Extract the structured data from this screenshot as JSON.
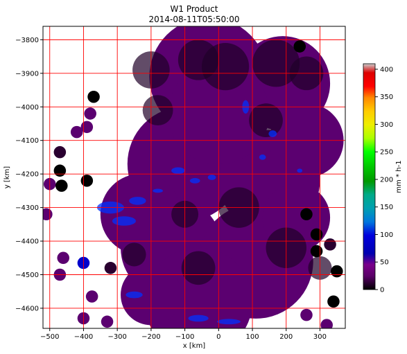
{
  "chart_data": {
    "type": "heatmap",
    "title": "W1 Product",
    "subtitle": "2014-08-11T05:50:00",
    "xlabel": "x [km]",
    "ylabel": "y [km]",
    "xlim": [
      -520,
      375
    ],
    "ylim": [
      -4660,
      -3760
    ],
    "x_ticks": [
      -500,
      -400,
      -300,
      -200,
      -100,
      0,
      100,
      200,
      300
    ],
    "y_ticks": [
      -3800,
      -3900,
      -4000,
      -4100,
      -4200,
      -4300,
      -4400,
      -4500,
      -4600
    ],
    "grid": true,
    "grid_color": "#ff0000",
    "colorbar": {
      "label": "mm * h-1",
      "min": 0,
      "max": 410,
      "ticks": [
        0,
        50,
        100,
        150,
        200,
        250,
        300,
        350,
        400
      ],
      "colormap": "nipy_spectral"
    },
    "dominant_colors": {
      "background_rain": "#5b0070",
      "no_rain": "#000000",
      "heavy_rain": "#0030ff"
    }
  }
}
